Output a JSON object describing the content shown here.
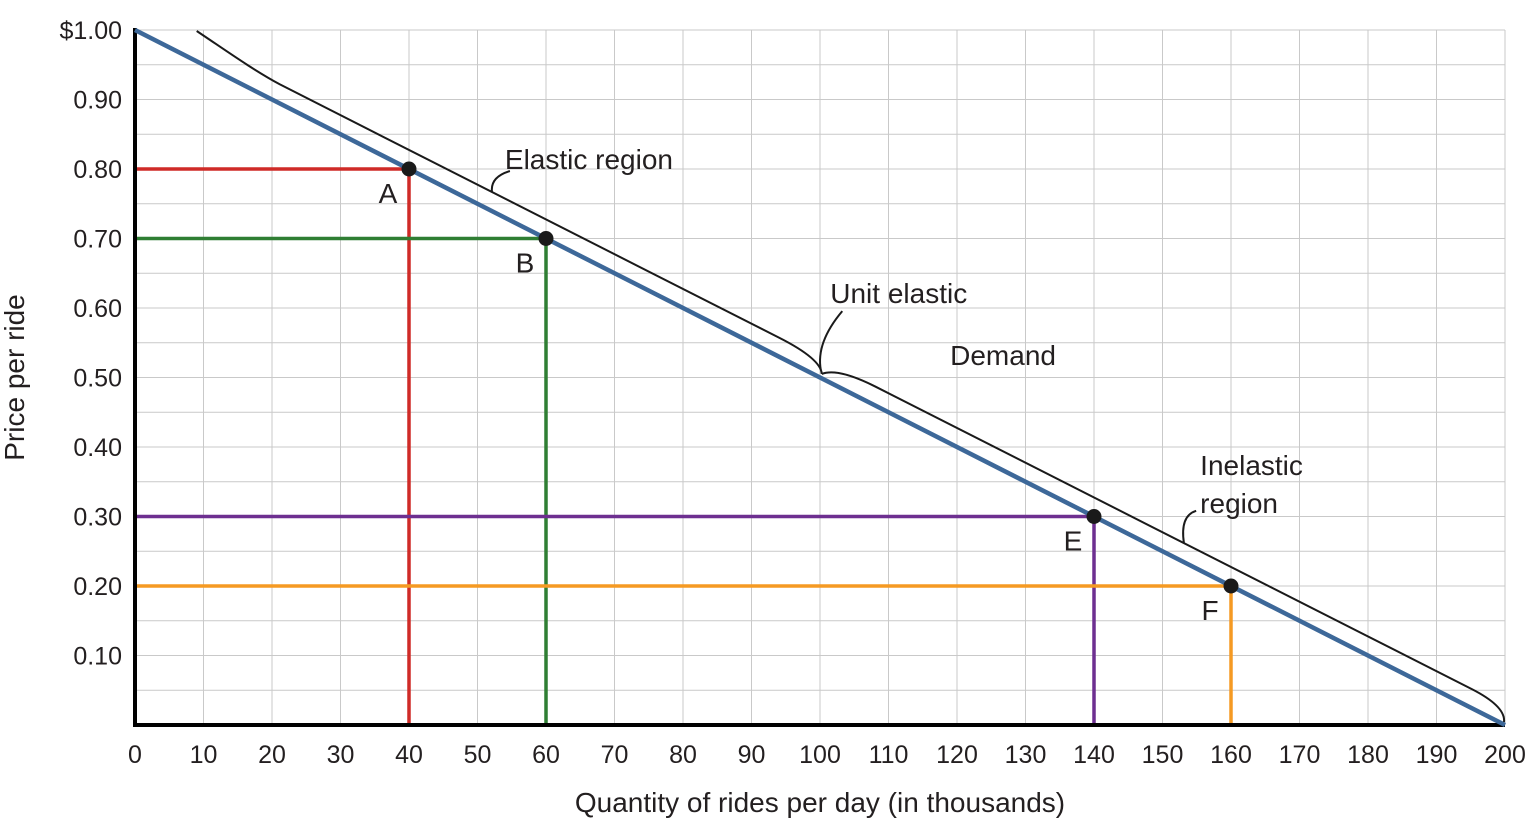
{
  "page": {
    "background": "#ffffff"
  },
  "chart_data": {
    "type": "line",
    "title": "",
    "xlabel": "Quantity of rides per day (in thousands)",
    "ylabel": "Price per ride",
    "xlim": [
      0,
      200
    ],
    "ylim": [
      0,
      1.0
    ],
    "grid": {
      "on": true,
      "x_step": 10,
      "y_step": 0.05,
      "color": "#c9c9c9"
    },
    "axis_color": "#000000",
    "text_color": "#231f20",
    "point_color": "#1a1a1a",
    "brace_color": "#1a1a1a",
    "x_ticks": [
      {
        "value": 0,
        "label": "0"
      },
      {
        "value": 10,
        "label": "10"
      },
      {
        "value": 20,
        "label": "20"
      },
      {
        "value": 30,
        "label": "30"
      },
      {
        "value": 40,
        "label": "40"
      },
      {
        "value": 50,
        "label": "50"
      },
      {
        "value": 60,
        "label": "60"
      },
      {
        "value": 70,
        "label": "70"
      },
      {
        "value": 80,
        "label": "80"
      },
      {
        "value": 90,
        "label": "90"
      },
      {
        "value": 100,
        "label": "100"
      },
      {
        "value": 110,
        "label": "110"
      },
      {
        "value": 120,
        "label": "120"
      },
      {
        "value": 130,
        "label": "130"
      },
      {
        "value": 140,
        "label": "140"
      },
      {
        "value": 150,
        "label": "150"
      },
      {
        "value": 160,
        "label": "160"
      },
      {
        "value": 170,
        "label": "170"
      },
      {
        "value": 180,
        "label": "180"
      },
      {
        "value": 190,
        "label": "190"
      },
      {
        "value": 200,
        "label": "200"
      }
    ],
    "y_ticks": [
      {
        "value": 1.0,
        "label": "$1.00"
      },
      {
        "value": 0.9,
        "label": "0.90"
      },
      {
        "value": 0.8,
        "label": "0.80"
      },
      {
        "value": 0.7,
        "label": "0.70"
      },
      {
        "value": 0.6,
        "label": "0.60"
      },
      {
        "value": 0.5,
        "label": "0.50"
      },
      {
        "value": 0.4,
        "label": "0.40"
      },
      {
        "value": 0.3,
        "label": "0.30"
      },
      {
        "value": 0.2,
        "label": "0.20"
      },
      {
        "value": 0.1,
        "label": "0.10"
      }
    ],
    "series": [
      {
        "name": "Demand",
        "color": "#3d6899",
        "points": [
          [
            0,
            1.0
          ],
          [
            200,
            0
          ]
        ]
      }
    ],
    "points": [
      {
        "label": "A",
        "x": 40,
        "y": 0.8,
        "guide_color": "#cf2a27"
      },
      {
        "label": "B",
        "x": 60,
        "y": 0.7,
        "guide_color": "#2f7e33"
      },
      {
        "label": "E",
        "x": 140,
        "y": 0.3,
        "guide_color": "#6d2f90"
      },
      {
        "label": "F",
        "x": 160,
        "y": 0.2,
        "guide_color": "#f59a23"
      }
    ],
    "annotations": [
      {
        "text": "Elastic region",
        "x": 54,
        "y": 0.8
      },
      {
        "text": "Unit elastic",
        "x": 101.5,
        "y": 0.607
      },
      {
        "text": "Demand",
        "x": 119,
        "y": 0.518
      },
      {
        "lines": [
          "Inelastic",
          "region"
        ],
        "x": 155.5,
        "y": 0.36
      }
    ],
    "regions": {
      "elastic": {
        "from": 0,
        "to": 100
      },
      "unit_elastic_point": {
        "x": 100,
        "y": 0.5
      },
      "inelastic": {
        "from": 100,
        "to": 200
      }
    }
  }
}
